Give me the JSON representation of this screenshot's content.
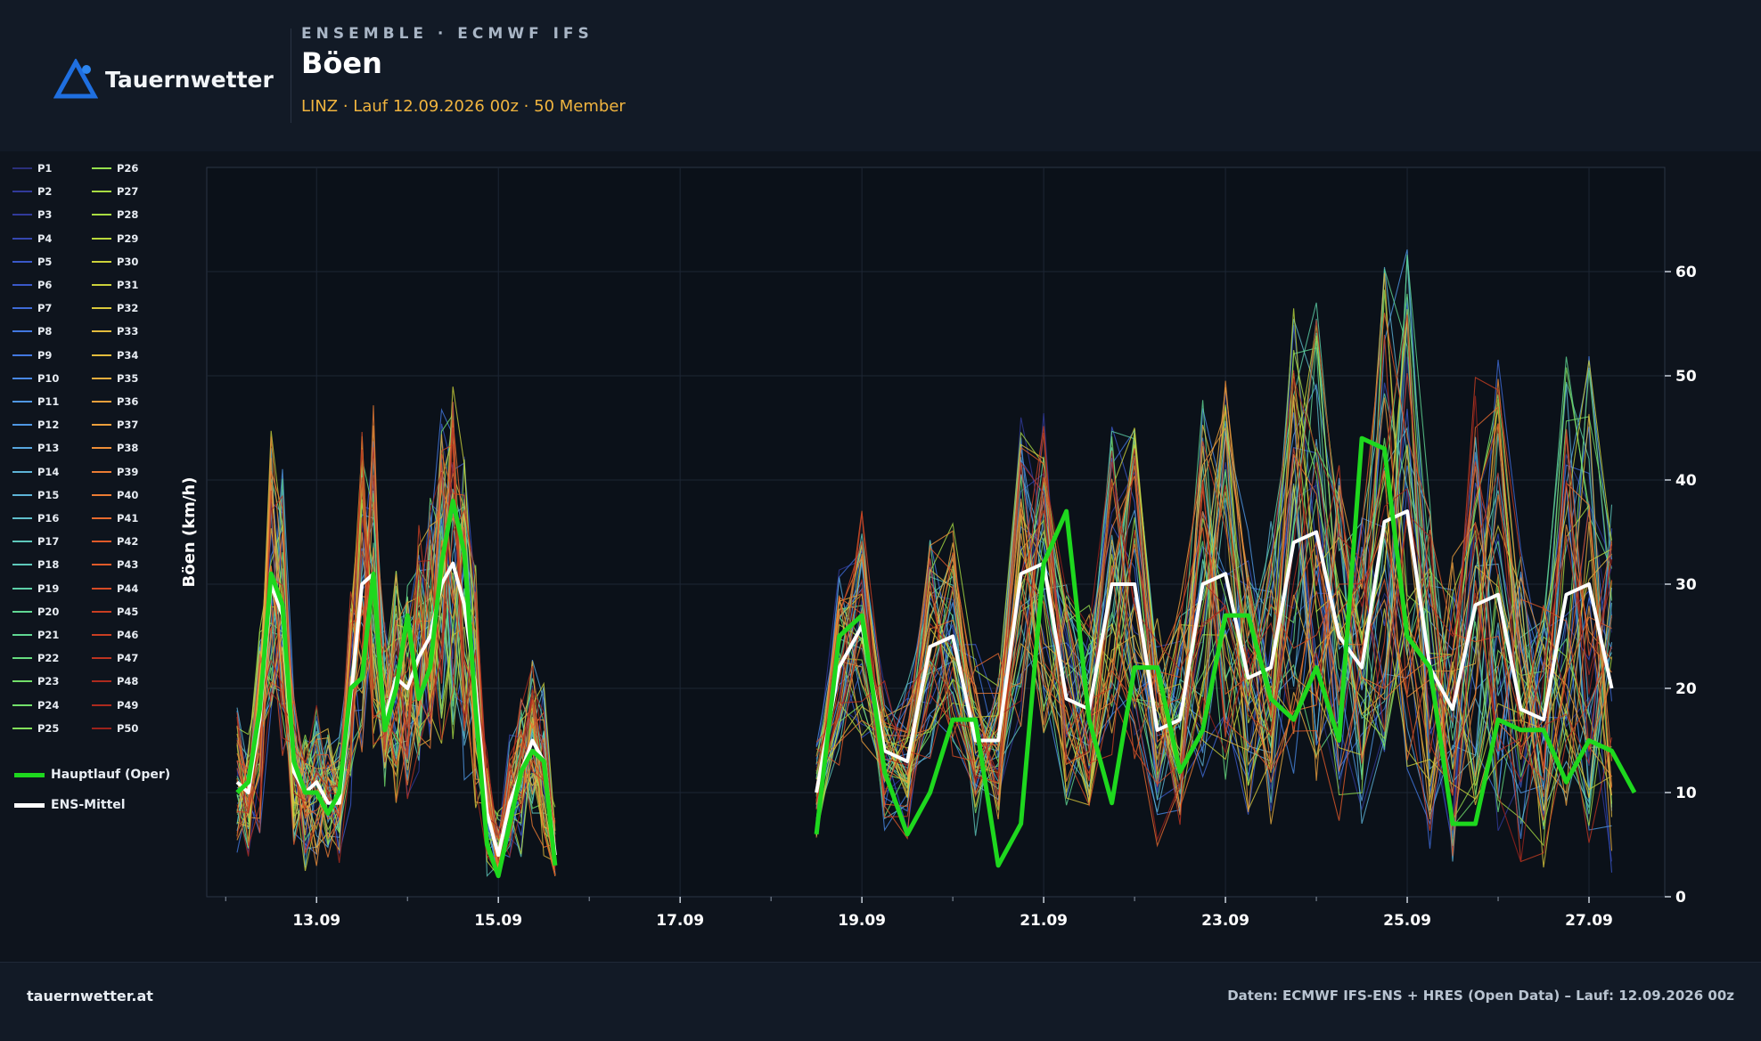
{
  "brand": {
    "name": "Tauernwetter"
  },
  "header": {
    "eyebrow": "ENSEMBLE · ECMWF IFS",
    "title": "Böen",
    "subtitle": "LINZ · Lauf 12.09.2026 00z · 50 Member"
  },
  "footer": {
    "site": "tauernwetter.at",
    "source": "Daten: ECMWF IFS-ENS + HRES (Open Data) – Lauf: 12.09.2026 00z"
  },
  "colors": {
    "oper": "#1ed81e",
    "mean": "#ffffff",
    "accent": "#f0b43f",
    "background": "#0e141d"
  },
  "legend": {
    "members": [
      "P1",
      "P2",
      "P3",
      "P4",
      "P5",
      "P6",
      "P7",
      "P8",
      "P9",
      "P10",
      "P11",
      "P12",
      "P13",
      "P14",
      "P15",
      "P16",
      "P17",
      "P18",
      "P19",
      "P20",
      "P21",
      "P22",
      "P23",
      "P24",
      "P25",
      "P26",
      "P27",
      "P28",
      "P29",
      "P30",
      "P31",
      "P32",
      "P33",
      "P34",
      "P35",
      "P36",
      "P37",
      "P38",
      "P39",
      "P40",
      "P41",
      "P42",
      "P43",
      "P44",
      "P45",
      "P46",
      "P47",
      "P48",
      "P49",
      "P50"
    ],
    "oper_label": "Hauptlauf (Oper)",
    "mean_label": "ENS-Mittel"
  },
  "chart_data": {
    "type": "line",
    "ylabel": "Böen (km/h)",
    "ylim": [
      0,
      70
    ],
    "yticks": [
      0,
      10,
      20,
      30,
      40,
      50,
      60
    ],
    "xlim": [
      "2026-09-11 19:00",
      "2026-09-27 20:00"
    ],
    "xticks": [
      {
        "t": "2026-09-13 00:00",
        "label": "13.09"
      },
      {
        "t": "2026-09-15 00:00",
        "label": "15.09"
      },
      {
        "t": "2026-09-17 00:00",
        "label": "17.09"
      },
      {
        "t": "2026-09-19 00:00",
        "label": "19.09"
      },
      {
        "t": "2026-09-21 00:00",
        "label": "21.09"
      },
      {
        "t": "2026-09-23 00:00",
        "label": "23.09"
      },
      {
        "t": "2026-09-25 00:00",
        "label": "25.09"
      },
      {
        "t": "2026-09-27 00:00",
        "label": "27.09"
      }
    ],
    "grid": true,
    "series": [
      {
        "name": "Hauptlauf (Oper)",
        "segments": [
          {
            "start": "2026-09-12 03:00",
            "step_hours": 3,
            "values": [
              10,
              11,
              18,
              31,
              28,
              13,
              10,
              10,
              8,
              10,
              20,
              21,
              31,
              16,
              20,
              27,
              19,
              22,
              32,
              38,
              33,
              18,
              5,
              2,
              7,
              12,
              14,
              13,
              3
            ]
          },
          {
            "start": "2026-09-18 12:00",
            "step_hours": 6,
            "values": [
              6,
              25,
              27,
              12,
              6,
              10,
              17,
              17,
              3,
              7,
              32,
              37,
              17,
              9,
              22,
              22,
              12,
              16,
              27,
              27,
              19,
              17,
              22,
              15,
              44,
              43,
              25,
              22,
              7,
              7,
              17,
              16,
              16,
              11,
              15,
              14,
              10
            ]
          }
        ]
      },
      {
        "name": "ENS-Mittel",
        "segments": [
          {
            "start": "2026-09-12 03:00",
            "step_hours": 3,
            "values": [
              11,
              10,
              17,
              30,
              27,
              12,
              10,
              11,
              9,
              9,
              19,
              30,
              31,
              17,
              21,
              20,
              23,
              25,
              30,
              32,
              28,
              20,
              8,
              4,
              9,
              12,
              15,
              13,
              4
            ]
          },
          {
            "start": "2026-09-18 12:00",
            "step_hours": 6,
            "values": [
              10,
              22,
              26,
              14,
              13,
              24,
              25,
              15,
              15,
              31,
              32,
              19,
              18,
              30,
              30,
              16,
              17,
              30,
              31,
              21,
              22,
              34,
              35,
              25,
              22,
              36,
              37,
              22,
              18,
              28,
              29,
              18,
              17,
              29,
              30,
              20
            ]
          }
        ]
      }
    ],
    "members_summary": {
      "count": 50,
      "segments_as_above": true,
      "note_level_max": 68
    }
  }
}
